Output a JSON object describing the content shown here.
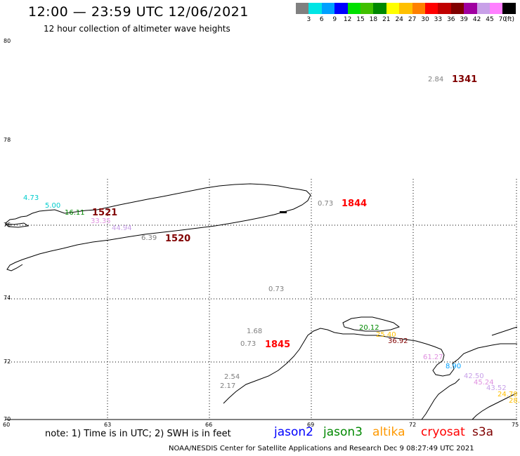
{
  "header": {
    "title": "12:00 — 23:59 UTC 12/06/2021",
    "subtitle": "12 hour collection of altimeter wave heights"
  },
  "legend": {
    "colors": [
      "#808080",
      "#00e5e5",
      "#00a0ff",
      "#0000ff",
      "#00e000",
      "#40c000",
      "#008800",
      "#ffff00",
      "#ffc000",
      "#ff8000",
      "#ff0000",
      "#c00000",
      "#800000",
      "#a000a0",
      "#c8a0e8",
      "#ff80ff",
      "#000000"
    ],
    "labels": [
      "3",
      "6",
      "9",
      "12",
      "15",
      "18",
      "21",
      "24",
      "27",
      "30",
      "33",
      "36",
      "39",
      "42",
      "45",
      "70"
    ],
    "unit": "(ft)"
  },
  "axes": {
    "lat_labels": [
      "80",
      "78",
      "76",
      "74",
      "72",
      "70"
    ],
    "lon_labels": [
      "60",
      "63",
      "66",
      "69",
      "72",
      "75"
    ]
  },
  "observations": [
    {
      "text": "2.84",
      "color": "#808080"
    },
    {
      "text": "1341",
      "color": "#800000",
      "bold": true
    },
    {
      "text": "4.73",
      "color": "#00cccc"
    },
    {
      "text": "5.00",
      "color": "#00cccc"
    },
    {
      "text": "16.11",
      "color": "#008800"
    },
    {
      "text": "1521",
      "color": "#800000",
      "bold": true
    },
    {
      "text": "33.35",
      "color": "#e090e0"
    },
    {
      "text": "44.94",
      "color": "#c8a0e8"
    },
    {
      "text": "6.39",
      "color": "#808080"
    },
    {
      "text": "1520",
      "color": "#800000",
      "bold": true
    },
    {
      "text": "0.73",
      "color": "#808080"
    },
    {
      "text": "1844",
      "color": "#ff0000",
      "bold": true
    },
    {
      "text": "0.73",
      "color": "#808080"
    },
    {
      "text": "1.68",
      "color": "#808080"
    },
    {
      "text": "0.73",
      "color": "#808080"
    },
    {
      "text": "1845",
      "color": "#ff0000",
      "bold": true
    },
    {
      "text": "20.12",
      "color": "#008800"
    },
    {
      "text": "25.40",
      "color": "#ffc000"
    },
    {
      "text": "36.92",
      "color": "#800000"
    },
    {
      "text": "61.27",
      "color": "#e090e0"
    },
    {
      "text": "8.90",
      "color": "#00a0ff"
    },
    {
      "text": "42.50",
      "color": "#c8a0e8"
    },
    {
      "text": "45.24",
      "color": "#e090e0"
    },
    {
      "text": "43.52",
      "color": "#c8a0e8"
    },
    {
      "text": "24.78",
      "color": "#ffc000"
    },
    {
      "text": "28.7",
      "color": "#ffc000"
    },
    {
      "text": "2.54",
      "color": "#808080"
    },
    {
      "text": "2.17",
      "color": "#808080"
    }
  ],
  "note": "note: 1) Time is in UTC; 2) SWH is in feet",
  "satellites": [
    {
      "name": "jason2",
      "color": "#0000ff"
    },
    {
      "name": "jason3",
      "color": "#008800"
    },
    {
      "name": "altika",
      "color": "#ff9900"
    },
    {
      "name": "cryosat",
      "color": "#ff0000"
    },
    {
      "name": "s3a",
      "color": "#800000"
    }
  ],
  "footer": "NOAA/NESDIS Center for Satellite Applications and Research    Dec  9 08:27:49 UTC 2021"
}
